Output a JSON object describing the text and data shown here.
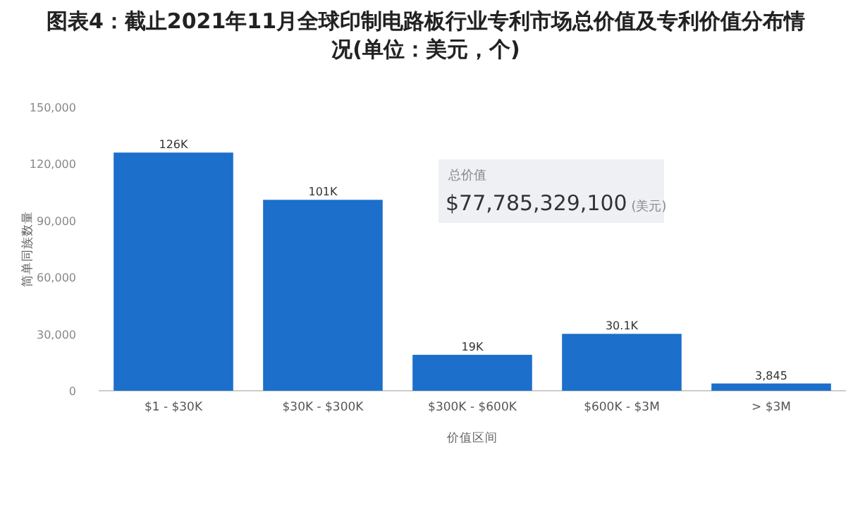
{
  "chart_data": {
    "type": "bar",
    "title": "图表4：截止2021年11月全球印制电路板行业专利市场总价值及专利价值分布情况(单位：美元，个)",
    "xlabel": "价值区间",
    "ylabel": "简单同族数量",
    "categories": [
      "$1 - $30K",
      "$30K - $300K",
      "$300K - $600K",
      "$600K - $3M",
      "> $3M"
    ],
    "values": [
      126000,
      101000,
      19000,
      30100,
      3845
    ],
    "value_labels": [
      "126K",
      "101K",
      "19K",
      "30.1K",
      "3,845"
    ],
    "color": "#1c6fcb",
    "ylim": [
      0,
      150000
    ],
    "yticks": [
      {
        "value": 0,
        "label": "0"
      },
      {
        "value": 30000,
        "label": "30,000"
      },
      {
        "value": 60000,
        "label": "60,000"
      },
      {
        "value": 90000,
        "label": "90,000"
      },
      {
        "value": 120000,
        "label": "120,000"
      },
      {
        "value": 150000,
        "label": "150,000"
      }
    ],
    "annotations": [
      "总价值",
      "$77,785,329,100 (美元)"
    ]
  }
}
